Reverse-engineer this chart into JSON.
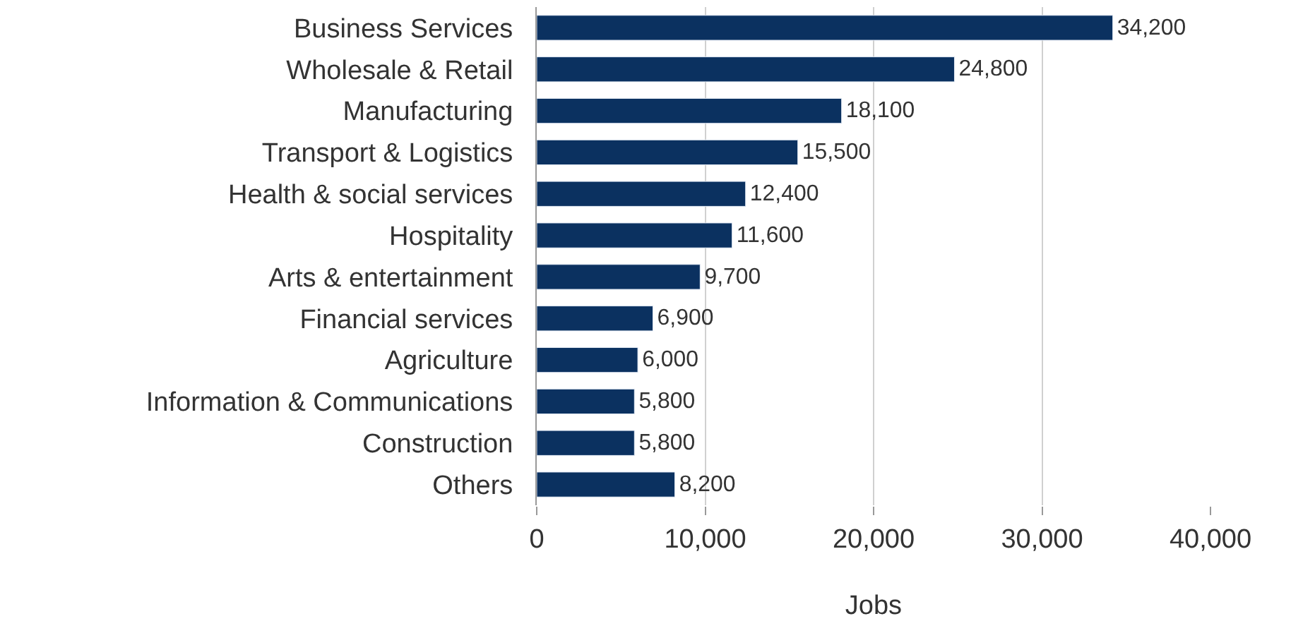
{
  "chart_data": {
    "type": "bar",
    "orientation": "horizontal",
    "xlabel": "Jobs",
    "categories": [
      "Business Services",
      "Wholesale & Retail",
      "Manufacturing",
      "Transport & Logistics",
      "Health & social services",
      "Hospitality",
      "Arts & entertainment",
      "Financial services",
      "Agriculture",
      "Information & Communications",
      "Construction",
      "Others"
    ],
    "values": [
      34200,
      24800,
      18100,
      15500,
      12400,
      11600,
      9700,
      6900,
      6000,
      5800,
      5800,
      8200
    ],
    "value_labels": [
      "34,200",
      "24,800",
      "18,100",
      "15,500",
      "12,400",
      "11,600",
      "9,700",
      "6,900",
      "6,000",
      "5,800",
      "5,800",
      "8,200"
    ],
    "color": "#0b3160",
    "xlim": [
      0,
      40000
    ],
    "xticks": [
      0,
      {
        "value": 10000,
        "label": "10,000"
      },
      {
        "value": 20000,
        "label": "20,000"
      },
      {
        "value": 30000,
        "label": "30,000"
      },
      {
        "value": 40000,
        "label": "40,000"
      }
    ],
    "grid": "x",
    "legend": false
  }
}
